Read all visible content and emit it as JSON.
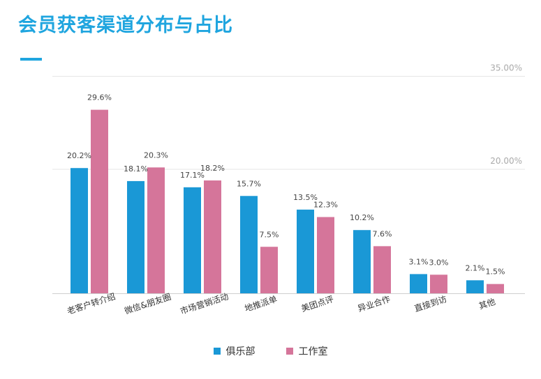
{
  "title": "会员获客渠道分布与占比",
  "colors": {
    "accent": "#1fa5df",
    "series1": "#1a98d6",
    "series2": "#d5759a",
    "grid": "#e6e6e6",
    "axis": "#cfcfcf",
    "tick_text": "#aaaaaa",
    "label_text": "#444444"
  },
  "chart_data": {
    "type": "bar",
    "categories": [
      "老客户转介绍",
      "微信&朋友圈",
      "市场营销活动",
      "地推派单",
      "美团点评",
      "异业合作",
      "直接到访",
      "其他"
    ],
    "series": [
      {
        "name": "俱乐部",
        "values": [
          20.2,
          18.1,
          17.1,
          15.7,
          13.5,
          10.2,
          3.1,
          2.1
        ],
        "labels": [
          "20.2%",
          "18.1%",
          "17.1%",
          "15.7%",
          "13.5%",
          "10.2%",
          "3.1%",
          "2.1%"
        ]
      },
      {
        "name": "工作室",
        "values": [
          29.6,
          20.3,
          18.2,
          7.5,
          12.3,
          7.6,
          3.0,
          1.5
        ],
        "labels": [
          "29.6%",
          "20.3%",
          "18.2%",
          "7.5%",
          "12.3%",
          "7.6%",
          "3.0%",
          "1.5%"
        ]
      }
    ],
    "y_ticks": [
      {
        "value": 20,
        "label": "20.00%"
      },
      {
        "value": 35,
        "label": "35.00%"
      }
    ],
    "ylim": [
      0,
      35
    ],
    "grid": true,
    "legend": "bottom"
  }
}
